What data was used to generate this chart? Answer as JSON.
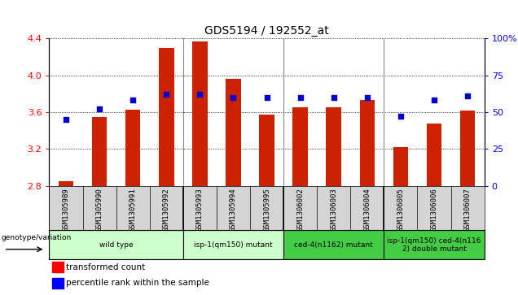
{
  "title": "GDS5194 / 192552_at",
  "samples": [
    "GSM1305989",
    "GSM1305990",
    "GSM1305991",
    "GSM1305992",
    "GSM1305993",
    "GSM1305994",
    "GSM1305995",
    "GSM1306002",
    "GSM1306003",
    "GSM1306004",
    "GSM1306005",
    "GSM1306006",
    "GSM1306007"
  ],
  "bar_values": [
    2.85,
    3.55,
    3.63,
    4.3,
    4.37,
    3.96,
    3.57,
    3.65,
    3.65,
    3.73,
    3.22,
    3.48,
    3.62
  ],
  "percentile_values": [
    45,
    52,
    58,
    62,
    62,
    60,
    60,
    60,
    60,
    60,
    47,
    58,
    61
  ],
  "bar_bottom": 2.8,
  "ylim_left": [
    2.8,
    4.4
  ],
  "ylim_right": [
    0,
    100
  ],
  "yticks_left": [
    2.8,
    3.2,
    3.6,
    4.0,
    4.4
  ],
  "yticks_right": [
    0,
    25,
    50,
    75,
    100
  ],
  "bar_color": "#cc2200",
  "dot_color": "#0000cc",
  "groups": [
    {
      "label": "wild type",
      "start": 0,
      "end": 3,
      "color": "#ccffcc"
    },
    {
      "label": "isp-1(qm150) mutant",
      "start": 4,
      "end": 6,
      "color": "#ccffcc"
    },
    {
      "label": "ced-4(n1162) mutant",
      "start": 7,
      "end": 9,
      "color": "#44cc44"
    },
    {
      "label": "isp-1(qm150) ced-4(n116\n2) double mutant",
      "start": 10,
      "end": 12,
      "color": "#44cc44"
    }
  ],
  "legend_text1": "transformed count",
  "legend_text2": "percentile rank within the sample",
  "genotype_label": "genotype/variation",
  "grid_color": "#555555",
  "sample_bg": "#d4d4d4",
  "sep_col": "#888888"
}
